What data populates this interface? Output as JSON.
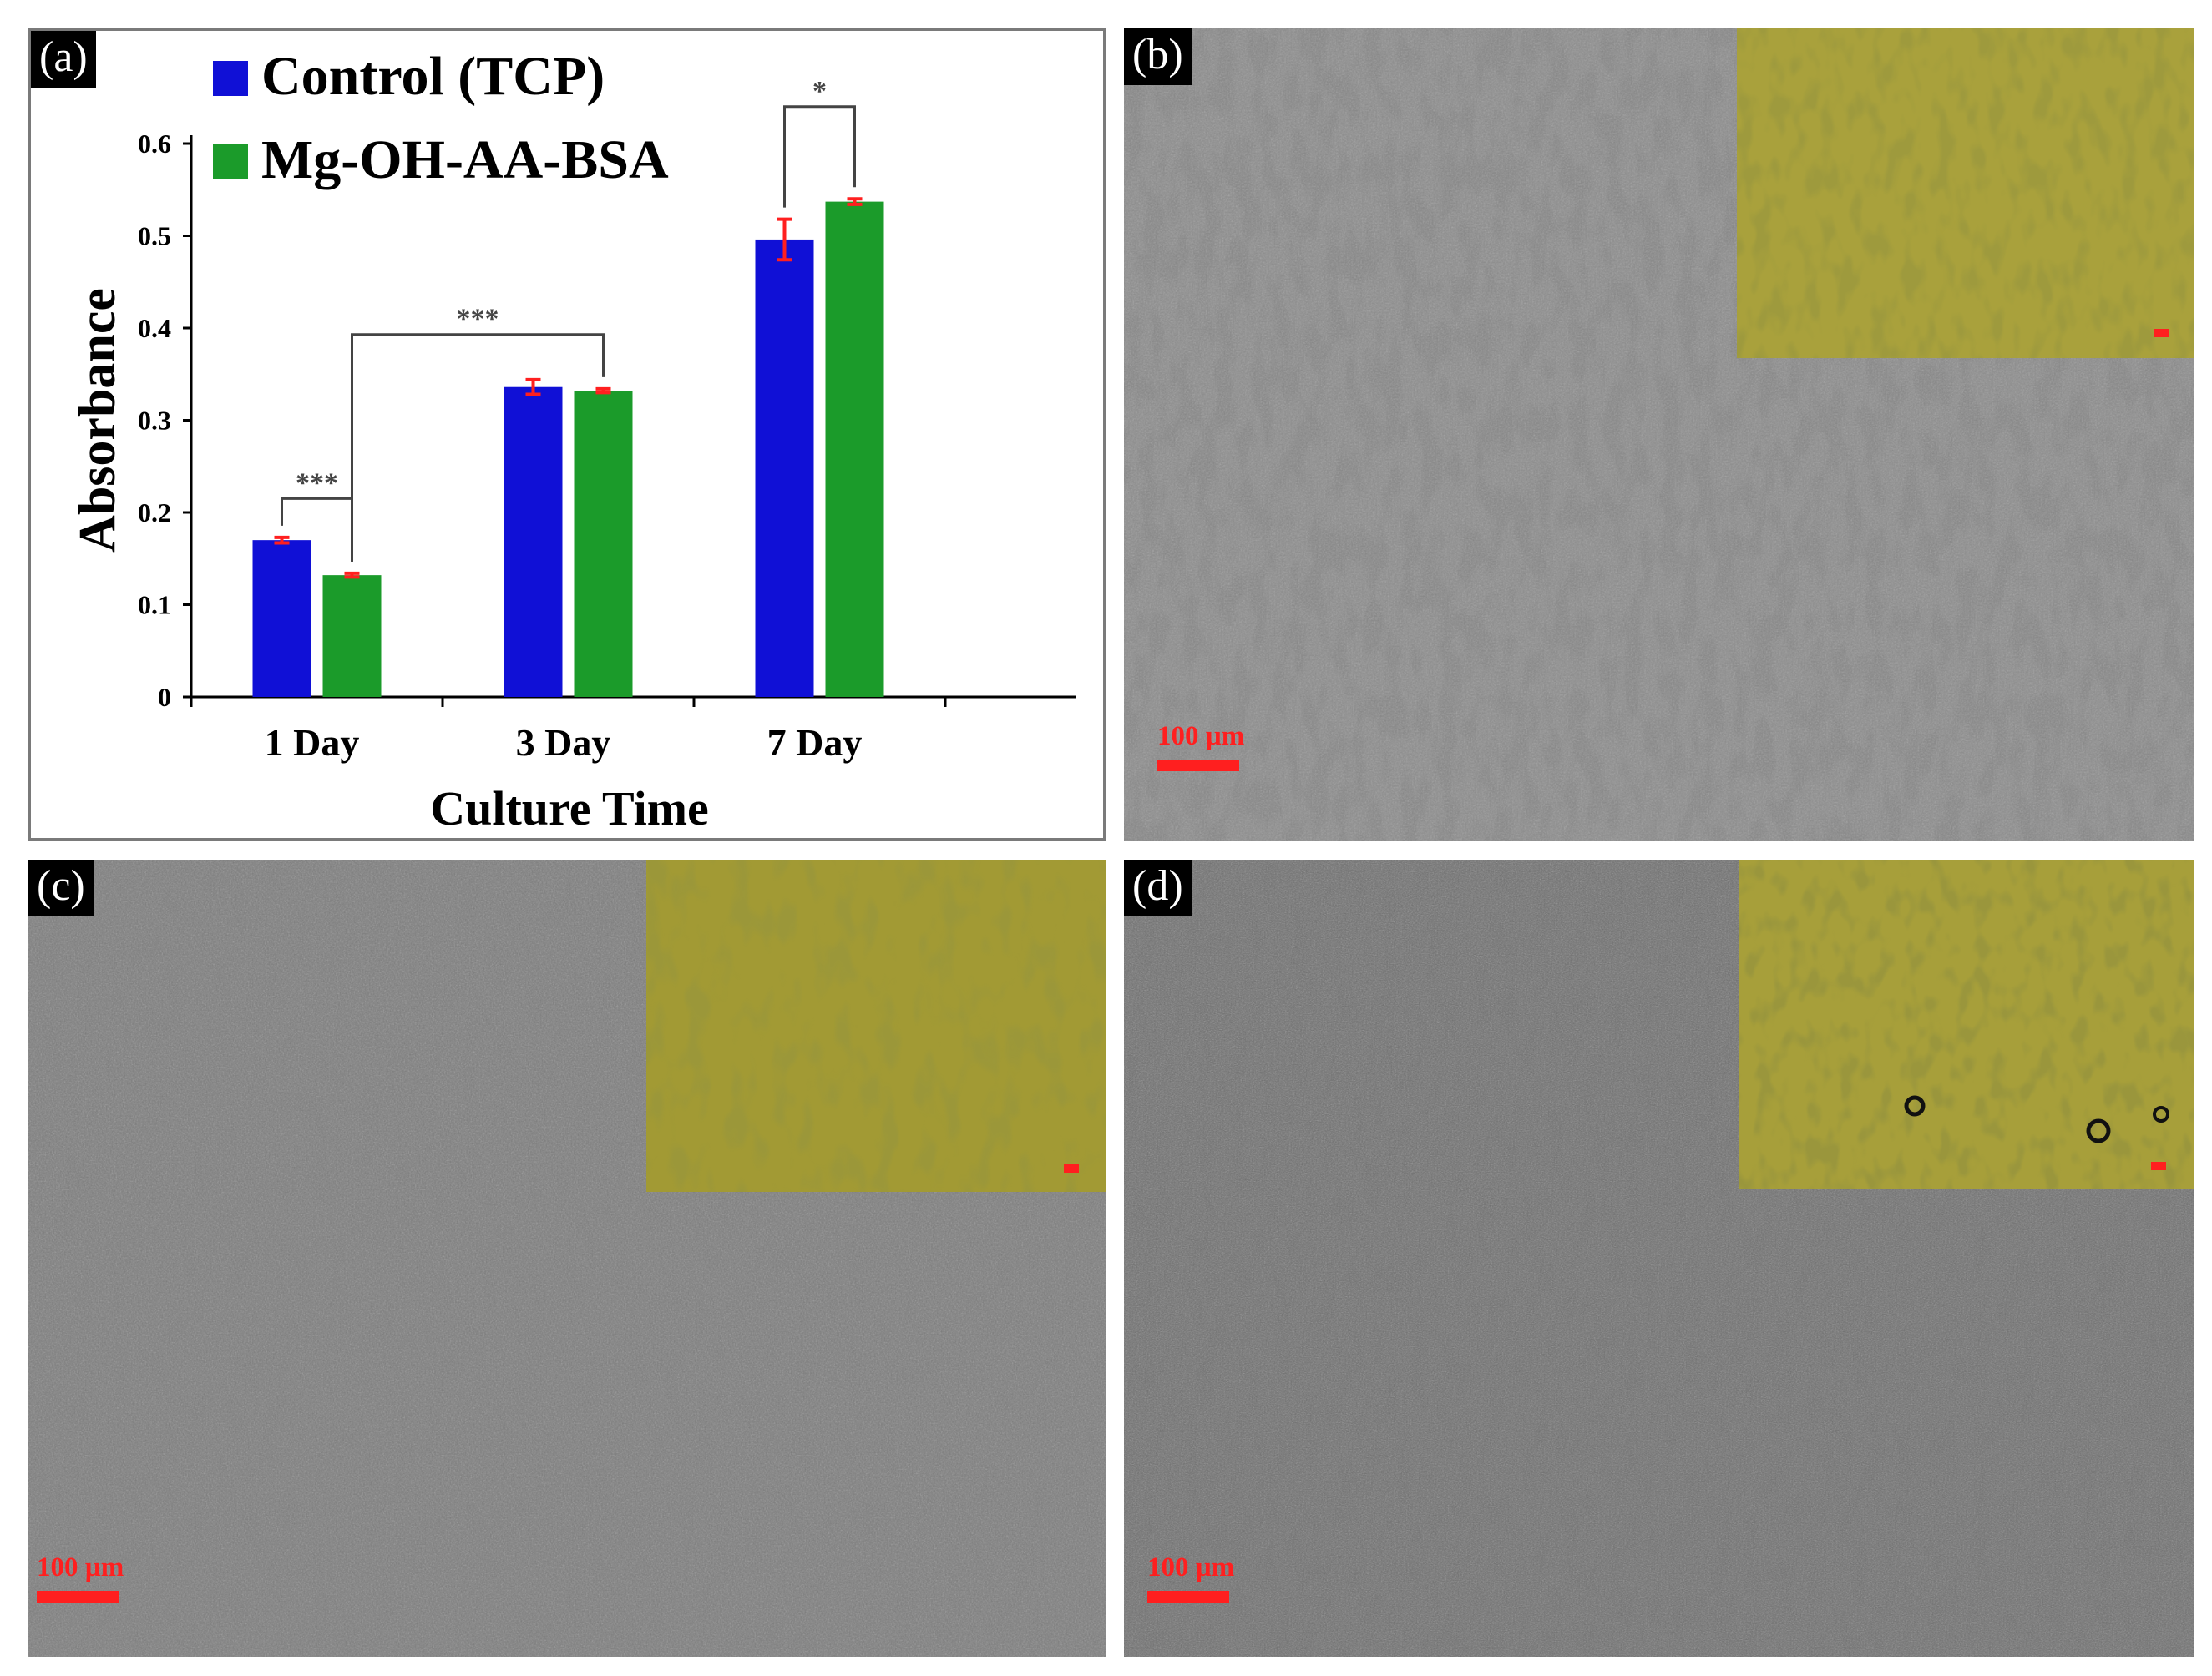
{
  "panels": {
    "a": {
      "label": "(a)"
    },
    "b": {
      "label": "(b)",
      "scale_bar": "100 µm"
    },
    "c": {
      "label": "(c)",
      "scale_bar": "100 µm"
    },
    "d": {
      "label": "(d)",
      "scale_bar": "100 µm"
    }
  },
  "chart_data": {
    "type": "bar",
    "categories": [
      "1 Day",
      "3 Day",
      "7 Day"
    ],
    "series": [
      {
        "name": "Control (TCP)",
        "color": "#1010d6",
        "values": [
          0.17,
          0.336,
          0.496
        ],
        "errors": [
          0.003,
          0.008,
          0.022
        ]
      },
      {
        "name": "Mg-OH-AA-BSA",
        "color": "#1b9b2a",
        "values": [
          0.132,
          0.332,
          0.537
        ],
        "errors": [
          0.002,
          0.002,
          0.003
        ]
      }
    ],
    "xlabel": "Culture Time",
    "ylabel": "Absorbance",
    "ylim": [
      0,
      0.6
    ],
    "yticks": [
      "0",
      "0.1",
      "0.2",
      "0.3",
      "0.4",
      "0.5",
      "0.6"
    ],
    "legend_position": "top-left",
    "error_bar_color": "#ff1f1f",
    "significance": [
      {
        "label": "***",
        "between": "1 Day Control (TCP) vs 1 Day Mg-OH-AA-BSA"
      },
      {
        "label": "***",
        "between": "1 Day Mg-OH-AA-BSA vs 3 Day Mg-OH-AA-BSA"
      },
      {
        "label": "*",
        "between": "7 Day Control (TCP) vs 7 Day Mg-OH-AA-BSA"
      }
    ]
  }
}
